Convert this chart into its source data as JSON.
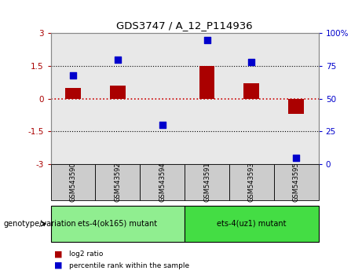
{
  "title": "GDS3747 / A_12_P114936",
  "samples": [
    "GSM543590",
    "GSM543592",
    "GSM543594",
    "GSM543591",
    "GSM543593",
    "GSM543595"
  ],
  "log2_ratio": [
    0.5,
    0.6,
    0.0,
    1.5,
    0.7,
    -0.7
  ],
  "percentile_rank": [
    68,
    80,
    30,
    95,
    78,
    5
  ],
  "ylim_left": [
    -3,
    3
  ],
  "ylim_right": [
    0,
    100
  ],
  "yticks_left": [
    -3,
    -1.5,
    0,
    1.5,
    3
  ],
  "yticks_right": [
    0,
    25,
    50,
    75,
    100
  ],
  "ytick_labels_right": [
    "0",
    "25",
    "50",
    "75",
    "100%"
  ],
  "bar_color": "#aa0000",
  "scatter_color": "#0000cc",
  "zero_line_color": "#cc0000",
  "group1_label": "ets-4(ok165) mutant",
  "group2_label": "ets-4(uz1) mutant",
  "group1_count": 3,
  "group2_count": 3,
  "group1_color": "#90ee90",
  "group2_color": "#44dd44",
  "legend_bar_label": "log2 ratio",
  "legend_scatter_label": "percentile rank within the sample",
  "genotype_label": "genotype/variation",
  "axis_bg": "#e8e8e8",
  "border_color": "#888888"
}
